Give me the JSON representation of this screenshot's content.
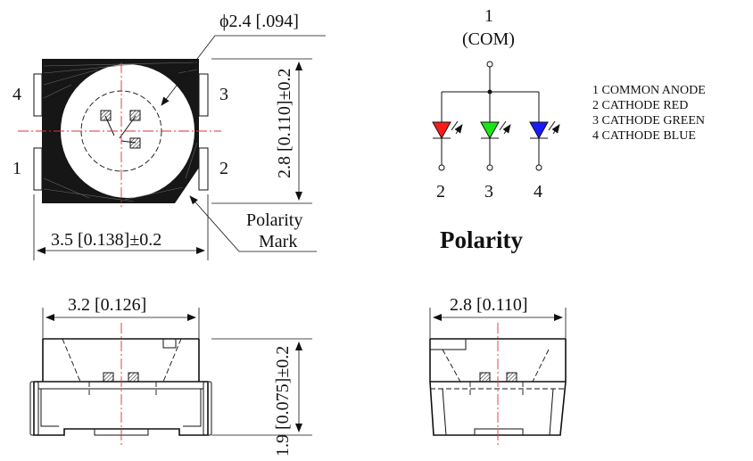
{
  "top_view": {
    "dia_label": "ϕ2.4 [.094]",
    "height_label": "2.8 [0.110]±0.2",
    "width_label": "3.5 [0.138]±0.2",
    "pins": [
      "4",
      "3",
      "1",
      "2"
    ],
    "polarity_line1": "Polarity",
    "polarity_line2": "Mark"
  },
  "schematic": {
    "top_number": "1",
    "top_name": "(COM)",
    "bottom_pins": [
      "2",
      "3",
      "4"
    ],
    "led_colors": [
      "#ff1a1a",
      "#19e619",
      "#1a1aff"
    ],
    "title": "Polarity"
  },
  "legend": [
    "1 COMMON ANODE",
    "2 CATHODE RED",
    "3 CATHODE GREEN",
    "4 CATHODE BLUE"
  ],
  "side_view": {
    "width_label": "3.2 [0.126]",
    "height_label": "1.9 [0.075]±0.2"
  },
  "end_view": {
    "width_label": "2.8 [0.110]"
  }
}
